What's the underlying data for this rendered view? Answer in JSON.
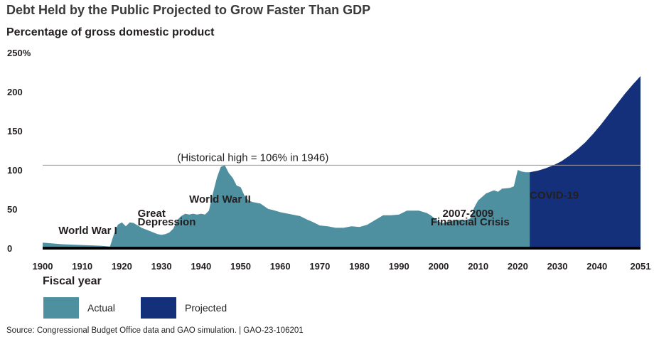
{
  "title": "Debt Held by the Public Projected to Grow Faster Than GDP",
  "source": "Source: Congressional Budget Office data and GAO simulation.  |  GAO-23-106201",
  "chart_data": {
    "type": "area",
    "title": "Debt Held by the Public Projected to Grow Faster Than GDP",
    "ylabel": "Percentage of gross domestic product",
    "xlabel": "Fiscal year",
    "xlim": [
      1900,
      2051
    ],
    "ylim": [
      0,
      250
    ],
    "x_ticks": [
      1900,
      1910,
      1920,
      1930,
      1940,
      1950,
      1960,
      1970,
      1980,
      1990,
      2000,
      2010,
      2020,
      2030,
      2040,
      2051
    ],
    "y_ticks": [
      {
        "value": 0,
        "label": "0"
      },
      {
        "value": 50,
        "label": "50"
      },
      {
        "value": 100,
        "label": "100"
      },
      {
        "value": 150,
        "label": "150"
      },
      {
        "value": 200,
        "label": "200"
      },
      {
        "value": 250,
        "label": "250%"
      }
    ],
    "grid": false,
    "legend_position": "bottom-left",
    "colors": {
      "actual": "#4e8fa0",
      "projected": "#15307a",
      "baseline": "#000000",
      "reference_line": "#9a9a9a"
    },
    "reference_line": {
      "y": 106,
      "label": "(Historical high = 106% in 1946)"
    },
    "annotations": [
      {
        "text": "World War I",
        "x": 1904,
        "y": 18
      },
      {
        "text": "Great",
        "x": 1924,
        "y": 40
      },
      {
        "text": "Depression",
        "x": 1924,
        "y": 29
      },
      {
        "text": "World War II",
        "x": 1937,
        "y": 58
      },
      {
        "text": "2007-2009",
        "x": 2001,
        "y": 40
      },
      {
        "text": "Financial Crisis",
        "x": 1998,
        "y": 29
      },
      {
        "text": "COVID-19",
        "x": 2023,
        "y": 63
      }
    ],
    "series": [
      {
        "name": "Actual",
        "x": [
          1900,
          1905,
          1910,
          1915,
          1917,
          1918,
          1919,
          1920,
          1921,
          1922,
          1923,
          1925,
          1928,
          1929,
          1930,
          1931,
          1932,
          1933,
          1934,
          1935,
          1936,
          1937,
          1938,
          1939,
          1940,
          1941,
          1942,
          1943,
          1944,
          1945,
          1946,
          1947,
          1948,
          1949,
          1950,
          1951,
          1952,
          1953,
          1955,
          1957,
          1958,
          1960,
          1962,
          1965,
          1967,
          1968,
          1970,
          1972,
          1974,
          1976,
          1978,
          1980,
          1982,
          1984,
          1986,
          1988,
          1990,
          1992,
          1995,
          1997,
          1998,
          2000,
          2001,
          2003,
          2005,
          2007,
          2008,
          2009,
          2010,
          2012,
          2014,
          2015,
          2016,
          2018,
          2019,
          2020,
          2021,
          2022,
          2023
        ],
        "values": [
          7,
          5,
          4,
          3,
          2,
          18,
          30,
          33,
          28,
          33,
          32,
          26,
          20,
          18,
          17,
          18,
          20,
          25,
          36,
          41,
          44,
          43,
          44,
          43,
          44,
          43,
          48,
          70,
          90,
          104,
          106,
          96,
          90,
          80,
          78,
          67,
          61,
          59,
          57,
          50,
          49,
          46,
          44,
          41,
          36,
          34,
          29,
          28,
          26,
          26,
          28,
          27,
          30,
          36,
          42,
          42,
          43,
          48,
          48,
          45,
          42,
          34,
          32,
          35,
          36,
          36,
          38,
          52,
          61,
          70,
          74,
          72,
          76,
          77,
          79,
          100,
          98,
          97,
          97
        ]
      },
      {
        "name": "Projected",
        "x": [
          2023,
          2025,
          2027,
          2029,
          2031,
          2033,
          2035,
          2037,
          2039,
          2041,
          2043,
          2045,
          2047,
          2049,
          2051
        ],
        "values": [
          97,
          99,
          102,
          106,
          111,
          118,
          126,
          135,
          146,
          158,
          171,
          184,
          197,
          209,
          220
        ]
      }
    ]
  }
}
